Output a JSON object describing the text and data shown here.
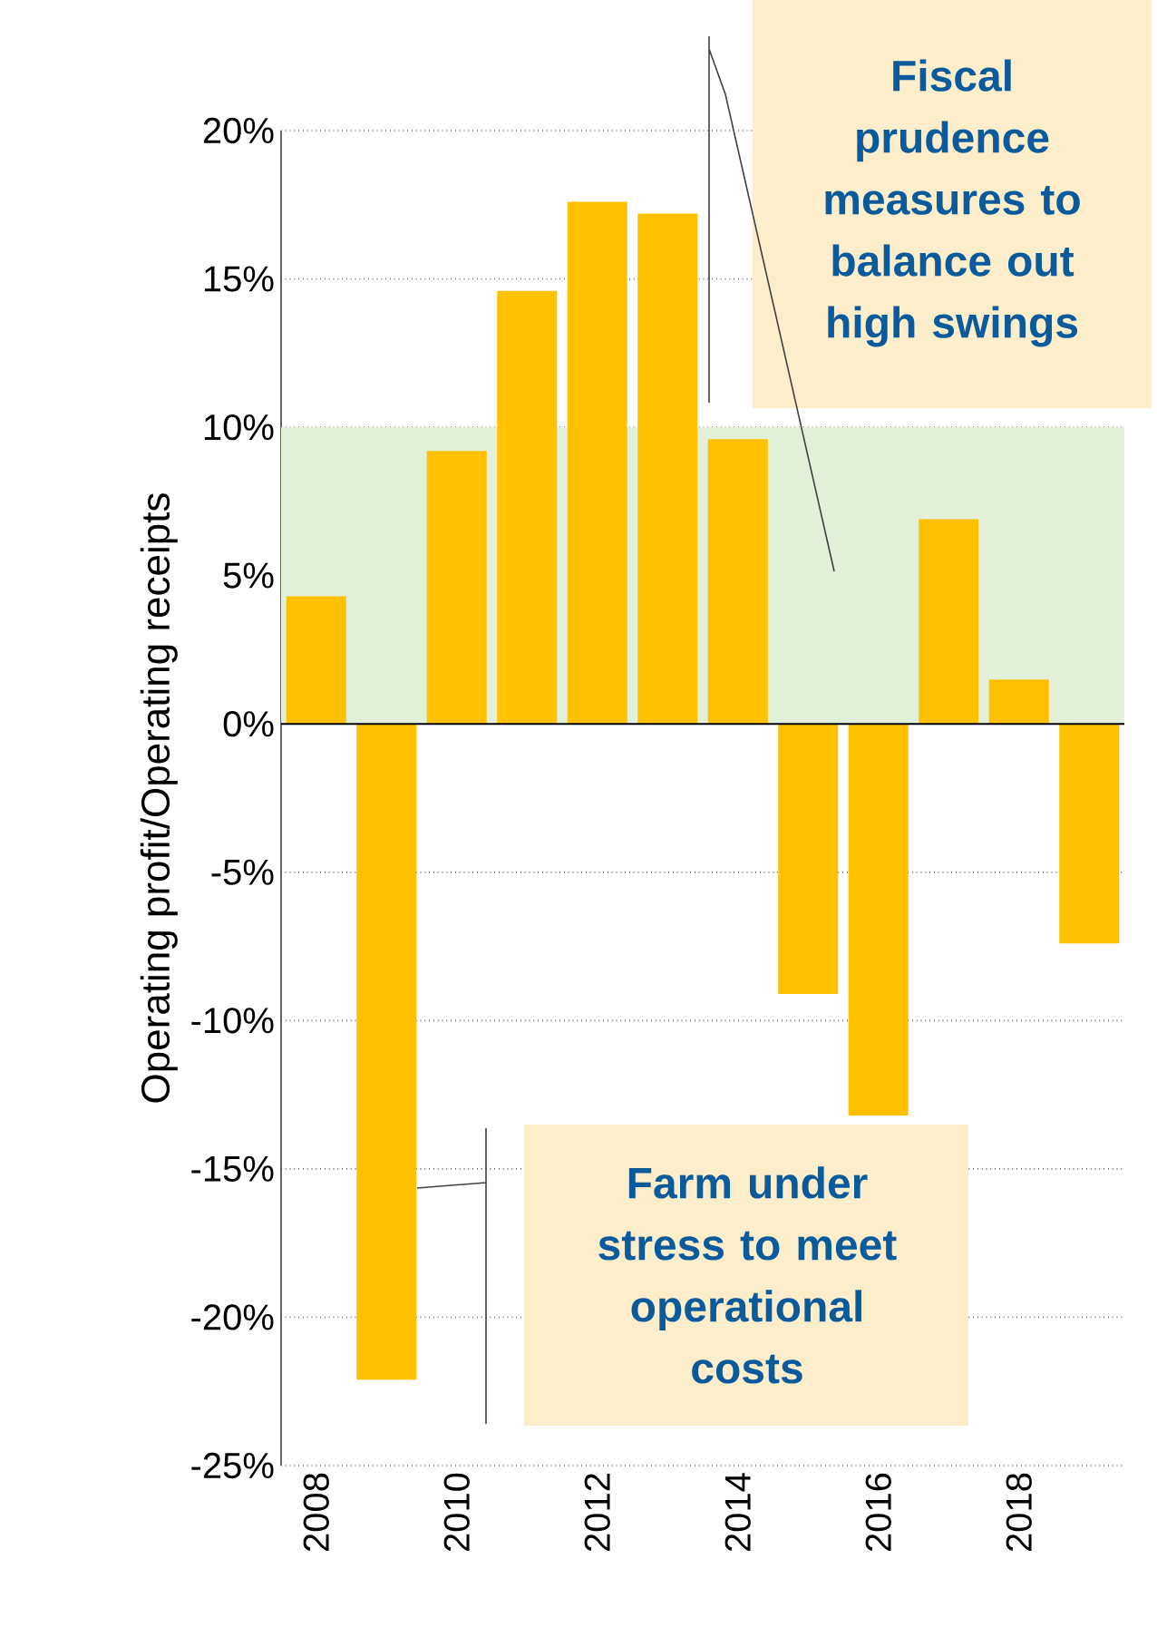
{
  "chart_data": {
    "type": "bar",
    "ylabel": "Operating profit/Operating receipts",
    "categories": [
      "2008",
      null,
      "2010",
      null,
      "2012",
      null,
      "2014",
      null,
      "2016",
      null,
      "2018",
      null
    ],
    "values": [
      4.3,
      -22.1,
      9.2,
      14.6,
      17.6,
      17.2,
      9.6,
      -9.1,
      -13.2,
      6.9,
      1.5,
      -7.4
    ],
    "color": "#ffc000",
    "ylim": [
      -25,
      20
    ],
    "yticks": [
      {
        "value": -25,
        "label": "-25%"
      },
      {
        "value": -20,
        "label": "-20%"
      },
      {
        "value": -15,
        "label": "-15%"
      },
      {
        "value": -10,
        "label": "-10%"
      },
      {
        "value": -5,
        "label": "-5%"
      },
      {
        "value": 0,
        "label": "0%"
      },
      {
        "value": 5,
        "label": "5%"
      },
      {
        "value": 10,
        "label": "10%"
      },
      {
        "value": 15,
        "label": "15%"
      },
      {
        "value": 20,
        "label": "20%"
      }
    ],
    "bands": [
      {
        "axis": "y",
        "from": 0,
        "to": 10,
        "color": "#e2efd9"
      }
    ],
    "grid": "y",
    "annotations": [
      "Fiscal prudence measures to balance out high swings",
      "Farm under stress to meet operational costs"
    ]
  }
}
